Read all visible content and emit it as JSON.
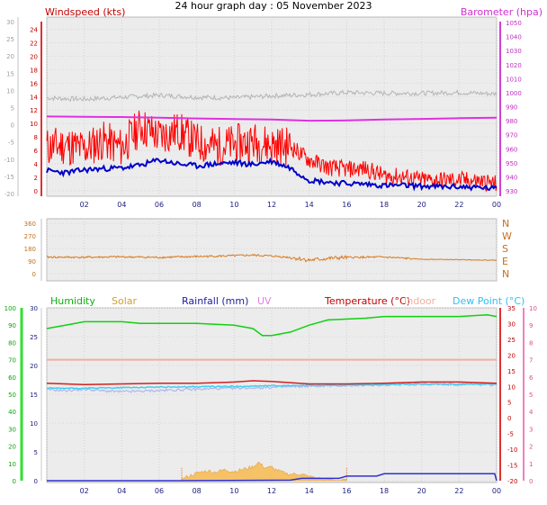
{
  "title": "24 hour graph day : 05 November 2023",
  "colors": {
    "wind": "#ff0000",
    "wind_avg": "#0000c8",
    "gust_grey": "#b4b4b4",
    "barometer": "#e030e0",
    "direction": "#d87a20",
    "humidity": "#10d010",
    "solar": "#f0a020",
    "rainfall": "#3030d0",
    "uv": "#e080e0",
    "temperature": "#d02020",
    "indoor": "#f0b0a0",
    "dewpoint": "#40d0f0",
    "chill": "#b0b8f0"
  },
  "chart_data": [
    {
      "type": "line",
      "panel": "wind",
      "title": "",
      "left_axis_label": "Windspeed (kts)",
      "right_axis_label": "Barometer (hpa)",
      "x_tick_labels": [
        "02",
        "04",
        "06",
        "08",
        "10",
        "12",
        "14",
        "16",
        "18",
        "20",
        "22",
        "00"
      ],
      "y_left_outer_ticks": [
        "30",
        "25",
        "20",
        "15",
        "10",
        "5",
        "0",
        "-5",
        "-10",
        "-15",
        "-20"
      ],
      "y_left_inner_ticks": [
        "24",
        "22",
        "20",
        "18",
        "16",
        "14",
        "12",
        "10",
        "8",
        "6",
        "4",
        "2",
        "0"
      ],
      "y_left_range": [
        0,
        25
      ],
      "y_right_ticks": [
        "1050",
        "1040",
        "1030",
        "1020",
        "1010",
        "1000",
        "990",
        "980",
        "970",
        "960",
        "950",
        "940",
        "930"
      ],
      "y_right_range": [
        930,
        1050
      ],
      "series": [
        {
          "name": "",
          "key": "gust_grey",
          "x": [
            0,
            2,
            4,
            6,
            8,
            10,
            12,
            14,
            16,
            18,
            20,
            22,
            24
          ],
          "values": [
            13.8,
            13.6,
            13.9,
            14.2,
            13.9,
            13.8,
            14.1,
            14.3,
            14.6,
            14.5,
            14.5,
            14.6,
            14.4
          ]
        },
        {
          "name": "",
          "key": "wind",
          "x": [
            0,
            1,
            2,
            3,
            4,
            5,
            6,
            7,
            8,
            9,
            10,
            11,
            12,
            13,
            14,
            15,
            16,
            17,
            18,
            19,
            20,
            21,
            22,
            23,
            24
          ],
          "values": [
            6.5,
            6.8,
            6.2,
            7.5,
            6.4,
            9.6,
            8.1,
            8.9,
            7.2,
            6.6,
            6.9,
            7.3,
            6.8,
            6.6,
            4.6,
            3.5,
            3.2,
            3.3,
            2.2,
            2.1,
            1.6,
            1.6,
            1.6,
            1.5,
            1.0
          ]
        },
        {
          "name": "",
          "key": "wind_avg",
          "x": [
            0,
            1,
            2,
            3,
            4,
            5,
            6,
            7,
            8,
            9,
            10,
            11,
            12,
            13,
            14,
            15,
            16,
            17,
            18,
            19,
            20,
            21,
            22,
            23,
            24
          ],
          "values": [
            3.0,
            2.7,
            3.1,
            3.3,
            3.4,
            3.8,
            4.6,
            4.0,
            3.7,
            4.0,
            4.2,
            3.9,
            4.4,
            3.4,
            1.6,
            1.3,
            1.1,
            1.0,
            0.8,
            0.8,
            0.7,
            0.6,
            0.6,
            0.5,
            0.3
          ]
        },
        {
          "name": "",
          "key": "barometer",
          "x": [
            0,
            2,
            4,
            6,
            8,
            10,
            12,
            14,
            16,
            18,
            20,
            22,
            24
          ],
          "values": [
            983.0,
            982.8,
            982.6,
            982.2,
            981.6,
            981.2,
            980.8,
            980.0,
            980.2,
            980.8,
            981.3,
            981.8,
            982.2
          ]
        }
      ]
    },
    {
      "type": "scatter",
      "panel": "direction",
      "title": "",
      "x_tick_labels": [],
      "y_left_ticks": [
        "360",
        "270",
        "180",
        "90",
        "0"
      ],
      "y_range": [
        0,
        360
      ],
      "compass_labels": [
        "N",
        "W",
        "S",
        "E",
        "N"
      ],
      "series": [
        {
          "name": "",
          "key": "direction",
          "x": [
            0,
            2,
            4,
            6,
            8,
            10,
            11,
            12,
            13,
            14,
            15,
            16,
            18,
            20,
            22,
            24
          ],
          "values": [
            118,
            117,
            120,
            116,
            122,
            128,
            132,
            126,
            116,
            96,
            108,
            116,
            118,
            103,
            100,
            96
          ]
        }
      ]
    },
    {
      "type": "line",
      "panel": "temp",
      "title": "",
      "legend": [
        "Humidity",
        "Solar",
        "Rainfall (mm)",
        "UV",
        "Temperature (°C)",
        "Indoor",
        "Dew Point (°C)"
      ],
      "x_tick_labels": [
        "02",
        "04",
        "06",
        "08",
        "10",
        "12",
        "14",
        "16",
        "18",
        "20",
        "22",
        "00"
      ],
      "y_humidity_ticks": [
        "100",
        "90",
        "80",
        "70",
        "60",
        "50",
        "40",
        "30",
        "20",
        "10",
        "0"
      ],
      "y_humidity_range": [
        0,
        100
      ],
      "y_rain_ticks": [
        "30",
        "25",
        "20",
        "15",
        "10",
        "5",
        "0"
      ],
      "y_rain_range": [
        0,
        30
      ],
      "y_temp_ticks": [
        "35",
        "30",
        "25",
        "20",
        "15",
        "10",
        "5",
        "0",
        "-5",
        "-10",
        "-15",
        "-20"
      ],
      "y_temp_range": [
        -20,
        35
      ],
      "y_uv_ticks": [
        "10",
        "9",
        "8",
        "7",
        "6",
        "5",
        "4",
        "3",
        "2",
        "1",
        "0"
      ],
      "y_uv_range": [
        0,
        10
      ],
      "series": [
        {
          "name": "",
          "key": "humidity",
          "axis": "humidity",
          "x": [
            0,
            1,
            2,
            4,
            5,
            6,
            8,
            10,
            11,
            11.5,
            12,
            13,
            14,
            15,
            17,
            18,
            20,
            22,
            23.5,
            24
          ],
          "values": [
            88,
            90,
            92,
            92,
            91,
            91,
            91,
            90,
            88,
            84,
            84,
            86,
            90,
            93,
            94,
            95,
            95,
            95,
            96,
            95
          ]
        },
        {
          "name": "",
          "key": "indoor",
          "axis": "temp",
          "x": [
            0,
            24
          ],
          "values": [
            18.5,
            18.5
          ]
        },
        {
          "name": "",
          "key": "temperature",
          "axis": "temp",
          "x": [
            0,
            2,
            4,
            6,
            8,
            10,
            11,
            12,
            13,
            14,
            16,
            18,
            20,
            22,
            24
          ],
          "values": [
            11.0,
            10.6,
            10.8,
            11.0,
            11.0,
            11.4,
            11.8,
            11.6,
            11.2,
            10.8,
            10.8,
            11.0,
            11.4,
            11.4,
            11.0
          ]
        },
        {
          "name": "",
          "key": "chill",
          "axis": "temp",
          "x": [
            0,
            1,
            2,
            3,
            4,
            5,
            6,
            7,
            8,
            9,
            10,
            12,
            14,
            16,
            18,
            20,
            22,
            24
          ],
          "values": [
            9.0,
            8.7,
            9.1,
            8.6,
            8.3,
            8.5,
            8.7,
            8.9,
            9.1,
            9.3,
            9.4,
            9.7,
            10.1,
            10.3,
            10.5,
            10.7,
            10.6,
            10.5
          ]
        },
        {
          "name": "",
          "key": "dewpoint",
          "axis": "temp",
          "x": [
            0,
            2,
            4,
            6,
            8,
            10,
            12,
            14,
            16,
            18,
            20,
            22,
            24
          ],
          "values": [
            9.4,
            9.4,
            9.6,
            9.8,
            9.9,
            10.0,
            10.2,
            10.3,
            10.4,
            10.6,
            10.8,
            10.7,
            10.7
          ]
        },
        {
          "name": "",
          "key": "rainfall",
          "axis": "rain",
          "x": [
            0,
            7.0,
            13.0,
            13.6,
            15.6,
            16.0,
            17.6,
            18.0,
            23.9,
            24
          ],
          "values": [
            0,
            0,
            0.1,
            0.4,
            0.4,
            0.8,
            0.8,
            1.2,
            1.2,
            0
          ]
        },
        {
          "name": "",
          "key": "solar",
          "axis": "rain",
          "x": [
            7.1,
            7.5,
            8,
            8.5,
            9,
            9.5,
            10,
            10.5,
            11,
            11.3,
            11.6,
            12,
            12.5,
            13,
            13.5,
            14,
            14.5,
            15,
            16
          ],
          "values": [
            0.1,
            0.7,
            1.3,
            1.7,
            1.5,
            1.9,
            1.6,
            2.0,
            2.4,
            3.2,
            2.3,
            2.3,
            1.5,
            1.1,
            1.2,
            0.7,
            0.4,
            0.2,
            0
          ]
        }
      ],
      "vertical_markers": [
        7.2,
        16.0
      ]
    }
  ]
}
